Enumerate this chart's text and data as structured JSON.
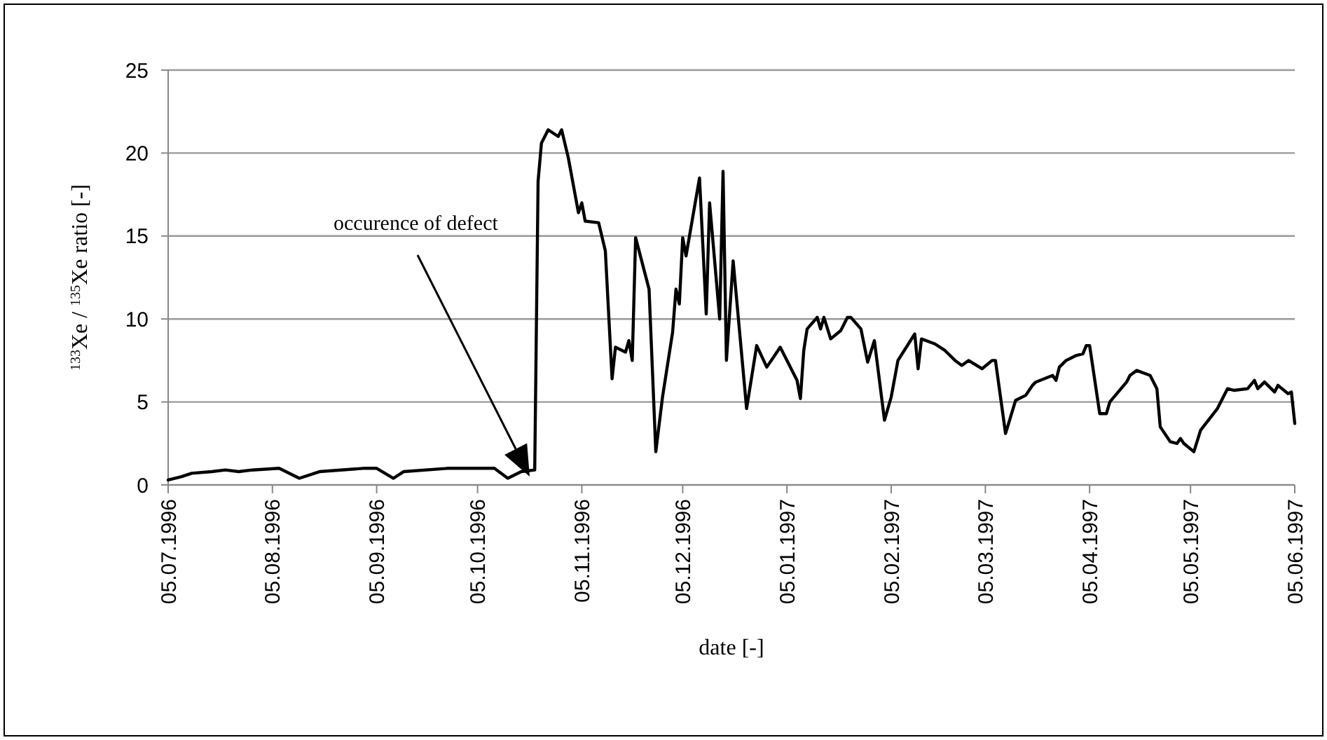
{
  "chart_data": {
    "type": "line",
    "xlabel": "date [-]",
    "ylabel": "$^{133}$Xe / $^{135}$Xe ratio [-]",
    "annotations": [
      "occurence of defect"
    ],
    "xlim": [
      "1996-07-05",
      "1997-06-05"
    ],
    "xticks": [
      {
        "value": "1996-07-05",
        "label": "05.07.1996"
      },
      {
        "value": "1996-08-05",
        "label": "05.08.1996"
      },
      {
        "value": "1996-09-05",
        "label": "05.09.1996"
      },
      {
        "value": "1996-10-05",
        "label": "05.10.1996"
      },
      {
        "value": "1996-11-05",
        "label": "05.11.1996"
      },
      {
        "value": "1996-12-05",
        "label": "05.12.1996"
      },
      {
        "value": "1997-01-05",
        "label": "05.01.1997"
      },
      {
        "value": "1997-02-05",
        "label": "05.02.1997"
      },
      {
        "value": "1997-03-05",
        "label": "05.03.1997"
      },
      {
        "value": "1997-04-05",
        "label": "05.04.1997"
      },
      {
        "value": "1997-05-05",
        "label": "05.05.1997"
      },
      {
        "value": "1997-06-05",
        "label": "05.06.1997"
      }
    ],
    "ylim": [
      0,
      25
    ],
    "yticks": [
      0,
      5,
      10,
      15,
      20,
      25
    ],
    "grid": "y",
    "marker": "none",
    "line_style": "solid",
    "series": [
      {
        "color": "#000000",
        "x": [
          "1996-07-05",
          "1996-07-09",
          "1996-07-12",
          "1996-07-18",
          "1996-07-22",
          "1996-07-26",
          "1996-07-30",
          "1996-08-07",
          "1996-08-13",
          "1996-08-19",
          "1996-09-01",
          "1996-09-05",
          "1996-09-10",
          "1996-09-13",
          "1996-09-26",
          "1996-10-10",
          "1996-10-14",
          "1996-10-18",
          "1996-10-22",
          "1996-10-23",
          "1996-10-24",
          "1996-10-26",
          "1996-10-29",
          "1996-10-30",
          "1996-11-01",
          "1996-11-04",
          "1996-11-05",
          "1996-11-06",
          "1996-11-10",
          "1996-11-12",
          "1996-11-14",
          "1996-11-15",
          "1996-11-18",
          "1996-11-19",
          "1996-11-20",
          "1996-11-21",
          "1996-11-25",
          "1996-11-27",
          "1996-11-29",
          "1996-12-02",
          "1996-12-03",
          "1996-12-04",
          "1996-12-05",
          "1996-12-06",
          "1996-12-10",
          "1996-12-12",
          "1996-12-13",
          "1996-12-16",
          "1996-12-17",
          "1996-12-18",
          "1996-12-20",
          "1996-12-24",
          "1996-12-27",
          "1996-12-30",
          "1997-01-03",
          "1997-01-08",
          "1997-01-09",
          "1997-01-10",
          "1997-01-11",
          "1997-01-14",
          "1997-01-15",
          "1997-01-16",
          "1997-01-18",
          "1997-01-21",
          "1997-01-23",
          "1997-01-24",
          "1997-01-27",
          "1997-01-29",
          "1997-01-31",
          "1997-02-03",
          "1997-02-05",
          "1997-02-07",
          "1997-02-12",
          "1997-02-13",
          "1997-02-14",
          "1997-02-18",
          "1997-02-21",
          "1997-02-24",
          "1997-02-26",
          "1997-02-28",
          "1997-03-04",
          "1997-03-07",
          "1997-03-08",
          "1997-03-11",
          "1997-03-14",
          "1997-03-17",
          "1997-03-19",
          "1997-03-20",
          "1997-03-25",
          "1997-03-26",
          "1997-03-27",
          "1997-03-29",
          "1997-04-01",
          "1997-04-03",
          "1997-04-04",
          "1997-04-05",
          "1997-04-08",
          "1997-04-10",
          "1997-04-11",
          "1997-04-16",
          "1997-04-17",
          "1997-04-19",
          "1997-04-23",
          "1997-04-25",
          "1997-04-26",
          "1997-04-29",
          "1997-05-01",
          "1997-05-02",
          "1997-05-03",
          "1997-05-06",
          "1997-05-08",
          "1997-05-13",
          "1997-05-16",
          "1997-05-18",
          "1997-05-22",
          "1997-05-24",
          "1997-05-25",
          "1997-05-27",
          "1997-05-30",
          "1997-05-31",
          "1997-06-03",
          "1997-06-04",
          "1997-06-05"
        ],
        "values": [
          0.3,
          0.5,
          0.7,
          0.8,
          0.9,
          0.8,
          0.9,
          1.0,
          0.4,
          0.8,
          1.0,
          1.0,
          0.4,
          0.8,
          1.0,
          1.0,
          0.4,
          0.8,
          0.9,
          18.3,
          20.6,
          21.4,
          21.0,
          21.4,
          19.7,
          16.4,
          17.0,
          15.9,
          15.8,
          14.1,
          6.4,
          8.3,
          8.0,
          8.7,
          7.5,
          14.9,
          11.8,
          2.0,
          5.3,
          9.2,
          11.8,
          10.9,
          14.9,
          13.8,
          18.5,
          10.3,
          17.0,
          10.0,
          18.9,
          7.5,
          13.5,
          4.6,
          8.4,
          7.1,
          8.3,
          6.3,
          5.2,
          8.1,
          9.4,
          10.1,
          9.4,
          10.1,
          8.8,
          9.3,
          10.1,
          10.1,
          9.4,
          7.4,
          8.7,
          3.9,
          5.3,
          7.5,
          9.1,
          7.0,
          8.8,
          8.5,
          8.1,
          7.5,
          7.2,
          7.5,
          7.0,
          7.5,
          7.5,
          3.1,
          5.1,
          5.4,
          6.0,
          6.2,
          6.6,
          6.3,
          7.1,
          7.5,
          7.8,
          7.9,
          8.4,
          8.4,
          4.3,
          4.3,
          5.0,
          6.2,
          6.6,
          6.9,
          6.6,
          5.8,
          3.5,
          2.6,
          2.5,
          2.8,
          2.5,
          2.0,
          3.3,
          4.6,
          5.8,
          5.7,
          5.8,
          6.3,
          5.8,
          6.2,
          5.6,
          6.0,
          5.5,
          5.6,
          3.7
        ]
      }
    ]
  }
}
